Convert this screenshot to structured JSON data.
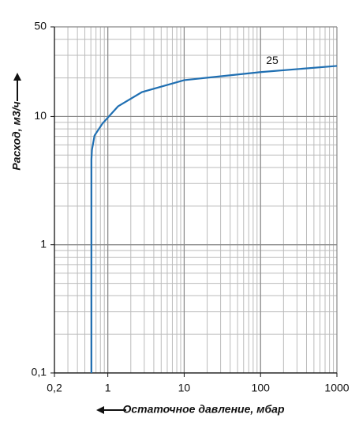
{
  "chart_data": {
    "type": "line",
    "ylabel": "Расход, м3/ч",
    "xlabel": "Остаточное давление, мбар",
    "xscale": "log",
    "yscale": "log",
    "grid": true,
    "xlim": [
      0.2,
      1000
    ],
    "ylim": [
      0.1,
      50
    ],
    "xticks": [
      {
        "value": 0.2,
        "label": "0,2"
      },
      1,
      10,
      100,
      1000
    ],
    "yticks": [
      {
        "value": 0.1,
        "label": "0,1"
      },
      1,
      10,
      50
    ],
    "series": [
      {
        "name": "25",
        "color": "#1f6fb2",
        "x": [
          0.61,
          0.61,
          0.62,
          0.67,
          0.85,
          1.36,
          2.8,
          10,
          100,
          1000
        ],
        "values": [
          0.1,
          4.6,
          5.5,
          7.1,
          8.8,
          12,
          15.5,
          19.2,
          22.2,
          24.8
        ]
      }
    ]
  }
}
